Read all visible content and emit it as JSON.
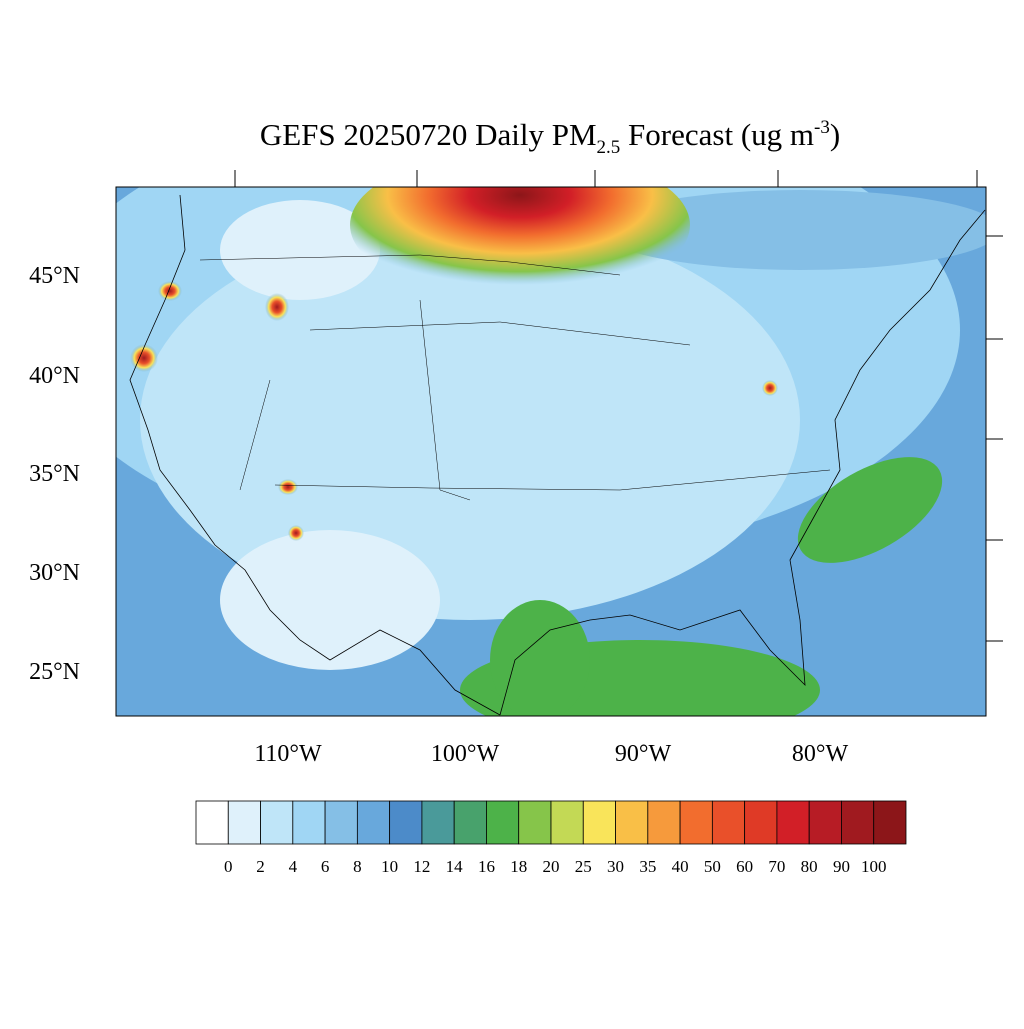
{
  "title": {
    "main": "GEFS 20250720 Daily PM",
    "subscript": "2.5",
    "middle": " Forecast (ug m",
    "superscript": "-3",
    "end": ")"
  },
  "map": {
    "lat_labels": [
      "45°N",
      "40°N",
      "35°N",
      "30°N",
      "25°N"
    ],
    "lon_labels": [
      "110°W",
      "100°W",
      "90°W",
      "80°W"
    ]
  },
  "colorbar": {
    "levels": [
      0,
      2,
      4,
      6,
      8,
      10,
      12,
      14,
      16,
      18,
      20,
      25,
      30,
      35,
      40,
      50,
      60,
      70,
      80,
      90,
      100
    ],
    "colors": [
      "#ffffff",
      "#dff1fb",
      "#bfe5f8",
      "#a0d6f4",
      "#85bfe6",
      "#68a8dc",
      "#4c8bc9",
      "#4a9a9a",
      "#48a26c",
      "#4db249",
      "#86c54a",
      "#c3d955",
      "#f9e45a",
      "#f9bf47",
      "#f69a3c",
      "#f26d2e",
      "#e9502a",
      "#df3a26",
      "#d21f27",
      "#b71c25",
      "#a01a1f",
      "#8c1619"
    ]
  }
}
